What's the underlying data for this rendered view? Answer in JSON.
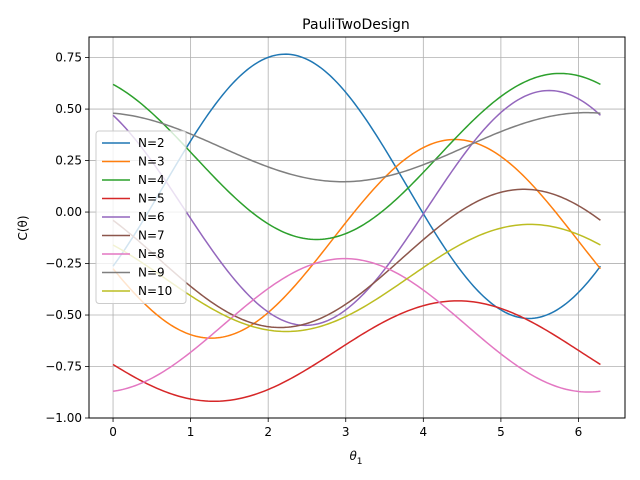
{
  "chart_data": {
    "type": "line",
    "title": "PauliTwoDesign",
    "xlabel": "θ",
    "xlabel_sub": "1",
    "ylabel": "C(θ)",
    "xlim": [
      -0.31,
      6.6
    ],
    "ylim": [
      -1.0,
      0.85
    ],
    "xticks": [
      0,
      1,
      2,
      3,
      4,
      5,
      6
    ],
    "xtick_labels": [
      "0",
      "1",
      "2",
      "3",
      "4",
      "5",
      "6"
    ],
    "yticks": [
      -1.0,
      -0.75,
      -0.5,
      -0.25,
      0.0,
      0.25,
      0.5,
      0.75
    ],
    "ytick_labels": [
      "−1.00",
      "−0.75",
      "−0.50",
      "−0.25",
      "0.00",
      "0.25",
      "0.50",
      "0.75"
    ],
    "grid": true,
    "legend_position": "center-left",
    "series": [
      {
        "name": "N=2",
        "color": "#1f77b4",
        "a0": 0.125,
        "a1": -0.388,
        "b1": 0.511
      },
      {
        "name": "N=3",
        "color": "#ff7f0e",
        "a0": -0.13,
        "a1": -0.145,
        "b1": -0.46
      },
      {
        "name": "N=4",
        "color": "#2ca02c",
        "a0": 0.27,
        "a1": 0.35,
        "b1": -0.2
      },
      {
        "name": "N=5",
        "color": "#d62728",
        "a0": -0.675,
        "a1": -0.065,
        "b1": -0.235
      },
      {
        "name": "N=6",
        "color": "#9467bd",
        "a0": 0.02,
        "a1": 0.45,
        "b1": -0.35
      },
      {
        "name": "N=7",
        "color": "#8c564b",
        "a0": -0.225,
        "a1": 0.185,
        "b1": -0.28
      },
      {
        "name": "N=8",
        "color": "#e377c2",
        "a0": -0.55,
        "a1": -0.32,
        "b1": 0.05
      },
      {
        "name": "N=9",
        "color": "#7f7f7f",
        "a0": 0.315,
        "a1": 0.165,
        "b1": -0.03
      },
      {
        "name": "N=10",
        "color": "#bcbd22",
        "a0": -0.32,
        "a1": 0.16,
        "b1": -0.205
      }
    ],
    "x_range": [
      0,
      6.2832
    ]
  }
}
